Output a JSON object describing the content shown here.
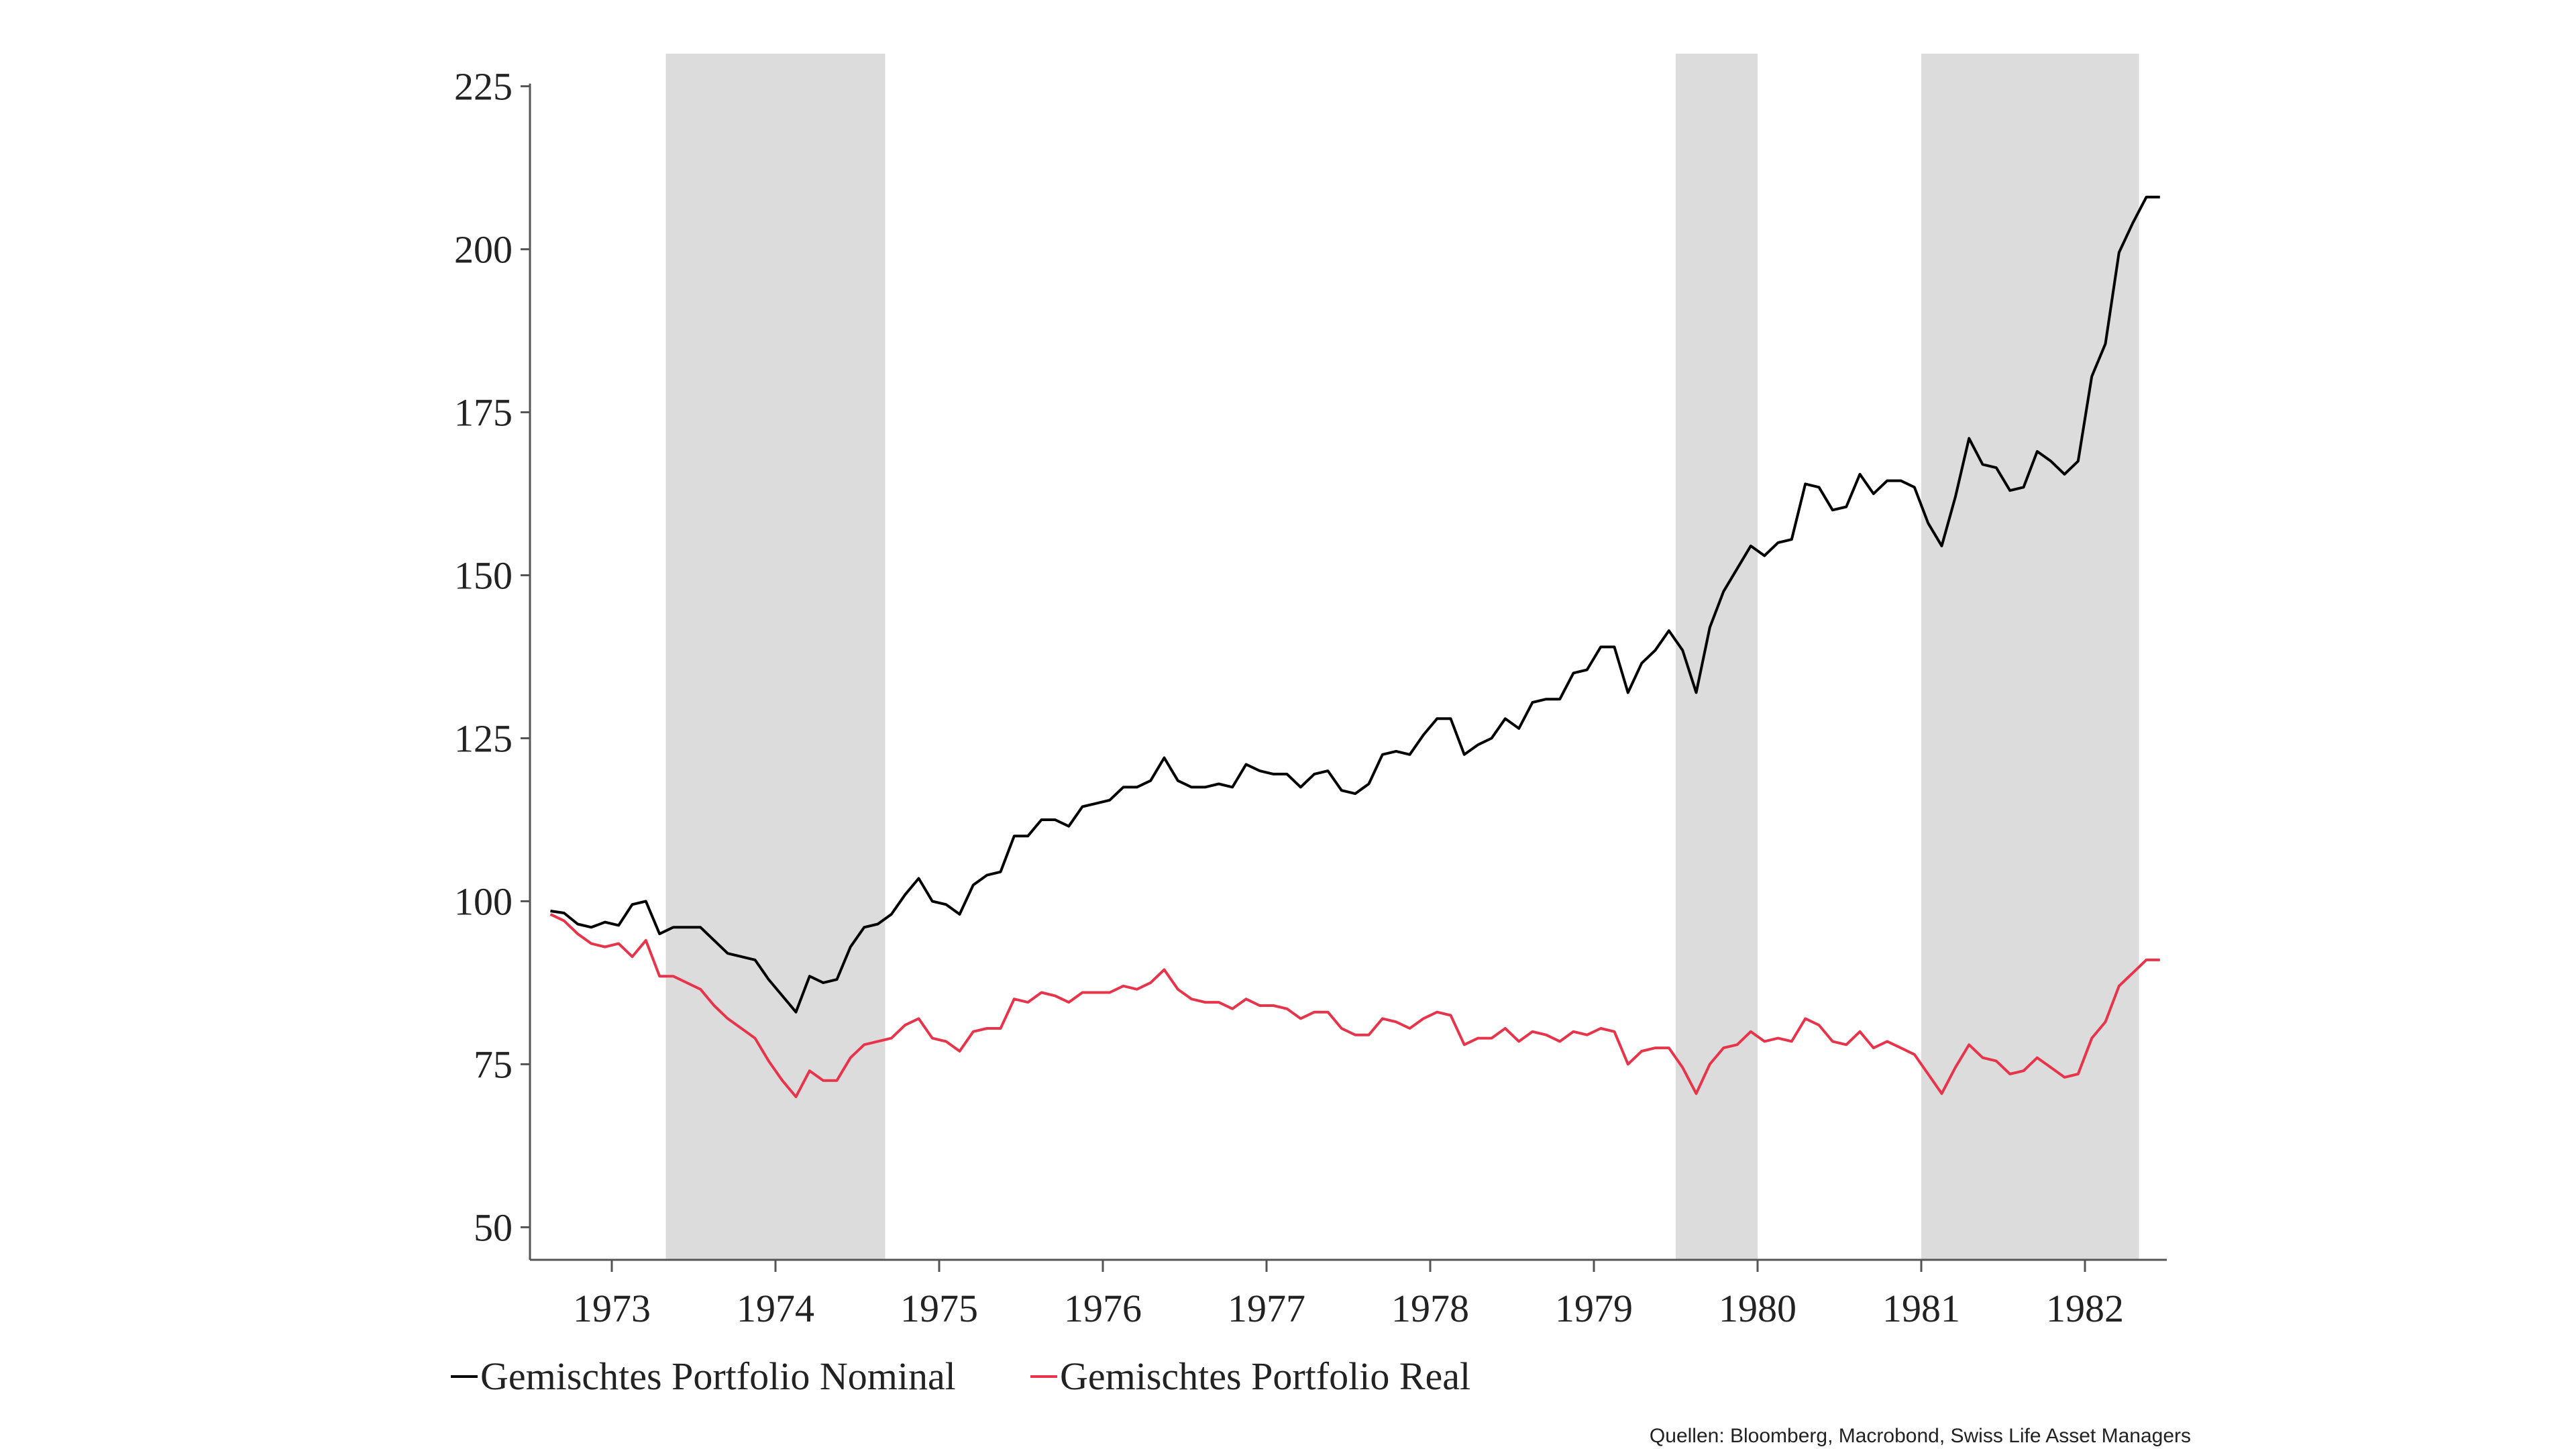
{
  "chart_data": {
    "type": "line",
    "x_unit": "year",
    "xlim": [
      1972.5,
      1982.5
    ],
    "ylim": [
      45,
      230
    ],
    "y_ticks": [
      50,
      75,
      100,
      125,
      150,
      175,
      200,
      225
    ],
    "x_tick_labels": [
      "1973",
      "1974",
      "1975",
      "1976",
      "1977",
      "1978",
      "1979",
      "1980",
      "1981",
      "1982"
    ],
    "grid": false,
    "legend_position": "bottom",
    "shaded_periods": [
      {
        "start": 1973.33,
        "end": 1974.67
      },
      {
        "start": 1979.5,
        "end": 1980.0
      },
      {
        "start": 1981.0,
        "end": 1982.33
      }
    ],
    "series": [
      {
        "name": "Gemischtes Portfolio Nominal",
        "color": "#000000",
        "x": [
          1972.625,
          1972.708,
          1972.792,
          1972.875,
          1972.958,
          1973.042,
          1973.125,
          1973.208,
          1973.292,
          1973.375,
          1973.458,
          1973.542,
          1973.625,
          1973.708,
          1973.792,
          1973.875,
          1973.958,
          1974.042,
          1974.125,
          1974.208,
          1974.292,
          1974.375,
          1974.458,
          1974.542,
          1974.625,
          1974.708,
          1974.792,
          1974.875,
          1974.958,
          1975.042,
          1975.125,
          1975.208,
          1975.292,
          1975.375,
          1975.458,
          1975.542,
          1975.625,
          1975.708,
          1975.792,
          1975.875,
          1975.958,
          1976.042,
          1976.125,
          1976.208,
          1976.292,
          1976.375,
          1976.458,
          1976.542,
          1976.625,
          1976.708,
          1976.792,
          1976.875,
          1976.958,
          1977.042,
          1977.125,
          1977.208,
          1977.292,
          1977.375,
          1977.458,
          1977.542,
          1977.625,
          1977.708,
          1977.792,
          1977.875,
          1977.958,
          1978.042,
          1978.125,
          1978.208,
          1978.292,
          1978.375,
          1978.458,
          1978.542,
          1978.625,
          1978.708,
          1978.792,
          1978.875,
          1978.958,
          1979.042,
          1979.125,
          1979.208,
          1979.292,
          1979.375,
          1979.458,
          1979.542,
          1979.625,
          1979.708,
          1979.792,
          1979.875,
          1979.958,
          1980.042,
          1980.125,
          1980.208,
          1980.292,
          1980.375,
          1980.458,
          1980.542,
          1980.625,
          1980.708,
          1980.792,
          1980.875,
          1980.958,
          1981.042,
          1981.125,
          1981.208,
          1981.292,
          1981.375,
          1981.458,
          1981.542,
          1981.625,
          1981.708,
          1981.792,
          1981.875,
          1981.958,
          1982.042,
          1982.125,
          1982.208,
          1982.292,
          1982.375,
          1982.458
        ],
        "values": [
          98.5,
          98.2,
          96.5,
          96.0,
          96.8,
          96.3,
          99.5,
          100.0,
          95.0,
          96.0,
          96.0,
          96.0,
          94.0,
          92.0,
          91.5,
          91.0,
          88.0,
          85.5,
          83.0,
          88.5,
          87.5,
          88.0,
          93.0,
          96.0,
          96.5,
          98.0,
          101.0,
          103.5,
          100.0,
          99.5,
          98.0,
          102.5,
          104.0,
          104.5,
          110.0,
          110.0,
          112.5,
          112.5,
          111.5,
          114.5,
          115.0,
          115.5,
          117.5,
          117.5,
          118.5,
          122.0,
          118.5,
          117.5,
          117.5,
          118.0,
          117.5,
          121.0,
          120.0,
          119.5,
          119.5,
          117.5,
          119.5,
          120.0,
          117.0,
          116.5,
          118.0,
          122.5,
          123.0,
          122.5,
          125.5,
          128.0,
          128.0,
          122.5,
          124.0,
          125.0,
          128.0,
          126.5,
          130.5,
          131.0,
          131.0,
          135.0,
          135.5,
          139.0,
          139.0,
          132.0,
          136.5,
          138.5,
          141.5,
          138.5,
          132.0,
          142.0,
          147.5,
          151.0,
          154.5,
          153.0,
          155.0,
          155.5,
          164.0,
          163.5,
          160.0,
          160.5,
          165.5,
          162.5,
          164.5,
          164.5,
          163.5,
          158.0,
          154.5,
          162.0,
          171.0,
          167.0,
          166.5,
          163.0,
          163.5,
          169.0,
          167.5,
          165.5,
          167.5,
          180.5,
          185.5,
          199.5,
          204.0,
          208.0,
          208.0
        ]
      },
      {
        "name": "Gemischtes Portfolio Real",
        "color": "#e8344a",
        "x": [
          1972.625,
          1972.708,
          1972.792,
          1972.875,
          1972.958,
          1973.042,
          1973.125,
          1973.208,
          1973.292,
          1973.375,
          1973.458,
          1973.542,
          1973.625,
          1973.708,
          1973.792,
          1973.875,
          1973.958,
          1974.042,
          1974.125,
          1974.208,
          1974.292,
          1974.375,
          1974.458,
          1974.542,
          1974.625,
          1974.708,
          1974.792,
          1974.875,
          1974.958,
          1975.042,
          1975.125,
          1975.208,
          1975.292,
          1975.375,
          1975.458,
          1975.542,
          1975.625,
          1975.708,
          1975.792,
          1975.875,
          1975.958,
          1976.042,
          1976.125,
          1976.208,
          1976.292,
          1976.375,
          1976.458,
          1976.542,
          1976.625,
          1976.708,
          1976.792,
          1976.875,
          1976.958,
          1977.042,
          1977.125,
          1977.208,
          1977.292,
          1977.375,
          1977.458,
          1977.542,
          1977.625,
          1977.708,
          1977.792,
          1977.875,
          1977.958,
          1978.042,
          1978.125,
          1978.208,
          1978.292,
          1978.375,
          1978.458,
          1978.542,
          1978.625,
          1978.708,
          1978.792,
          1978.875,
          1978.958,
          1979.042,
          1979.125,
          1979.208,
          1979.292,
          1979.375,
          1979.458,
          1979.542,
          1979.625,
          1979.708,
          1979.792,
          1979.875,
          1979.958,
          1980.042,
          1980.125,
          1980.208,
          1980.292,
          1980.375,
          1980.458,
          1980.542,
          1980.625,
          1980.708,
          1980.792,
          1980.875,
          1980.958,
          1981.042,
          1981.125,
          1981.208,
          1981.292,
          1981.375,
          1981.458,
          1981.542,
          1981.625,
          1981.708,
          1981.792,
          1981.875,
          1981.958,
          1982.042,
          1982.125,
          1982.208,
          1982.292,
          1982.375,
          1982.458
        ],
        "values": [
          98.0,
          97.0,
          95.0,
          93.5,
          93.0,
          93.5,
          91.5,
          94.0,
          88.5,
          88.5,
          87.5,
          86.5,
          84.0,
          82.0,
          80.5,
          79.0,
          75.5,
          72.5,
          70.0,
          74.0,
          72.5,
          72.5,
          76.0,
          78.0,
          78.5,
          79.0,
          81.0,
          82.0,
          79.0,
          78.5,
          77.0,
          80.0,
          80.5,
          80.5,
          85.0,
          84.5,
          86.0,
          85.5,
          84.5,
          86.0,
          86.0,
          86.0,
          87.0,
          86.5,
          87.5,
          89.5,
          86.5,
          85.0,
          84.5,
          84.5,
          83.5,
          85.0,
          84.0,
          84.0,
          83.5,
          82.0,
          83.0,
          83.0,
          80.5,
          79.5,
          79.5,
          82.0,
          81.5,
          80.5,
          82.0,
          83.0,
          82.5,
          78.0,
          79.0,
          79.0,
          80.5,
          78.5,
          80.0,
          79.5,
          78.5,
          80.0,
          79.5,
          80.5,
          80.0,
          75.0,
          77.0,
          77.5,
          77.5,
          74.5,
          70.5,
          75.0,
          77.5,
          78.0,
          80.0,
          78.5,
          79.0,
          78.5,
          82.0,
          81.0,
          78.5,
          78.0,
          80.0,
          77.5,
          78.5,
          77.5,
          76.5,
          73.5,
          70.5,
          74.5,
          78.0,
          76.0,
          75.5,
          73.5,
          74.0,
          76.0,
          74.5,
          73.0,
          73.5,
          79.0,
          81.5,
          87.0,
          89.0,
          91.0,
          91.0
        ]
      }
    ],
    "legend": [
      "Gemischtes Portfolio Nominal",
      "Gemischtes Portfolio Real"
    ],
    "source": "Quellen: Bloomberg, Macrobond, Swiss Life Asset Managers"
  },
  "colors": {
    "shade": "#dcdcdc",
    "axis": "#555555",
    "nominal": "#000000",
    "real": "#e8344a"
  }
}
